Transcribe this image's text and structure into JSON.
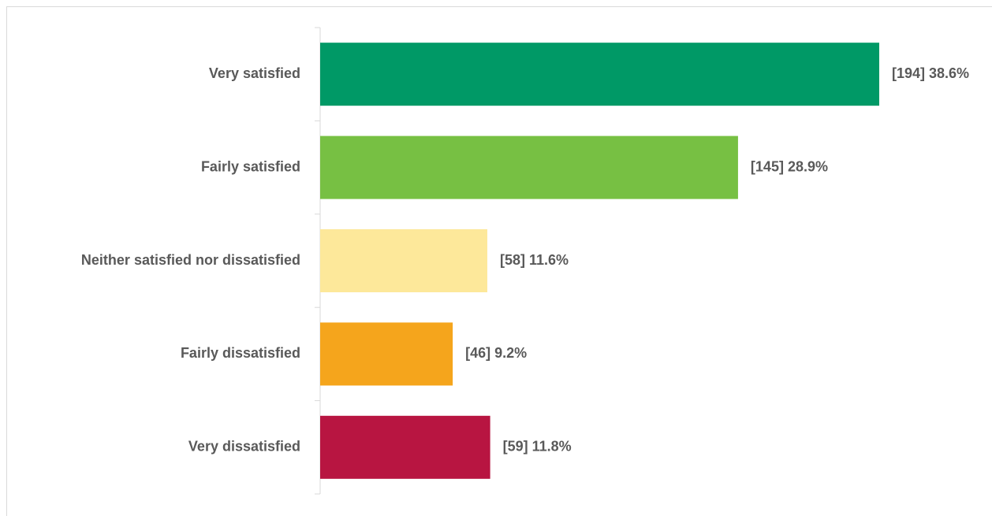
{
  "chart_data": {
    "type": "bar",
    "orientation": "horizontal",
    "categories": [
      "Very satisfied",
      "Fairly satisfied",
      "Neither satisfied nor dissatisfied",
      "Fairly dissatisfied",
      "Very dissatisfied"
    ],
    "values": [
      194,
      145,
      58,
      46,
      59
    ],
    "value_labels": [
      "[194] 38.6%",
      "[145] 28.9%",
      "[58] 11.6%",
      "[46] 9.2%",
      "[59] 11.8%"
    ],
    "colors": [
      "#009966",
      "#77c043",
      "#fde89a",
      "#f5a51c",
      "#b81541"
    ]
  }
}
